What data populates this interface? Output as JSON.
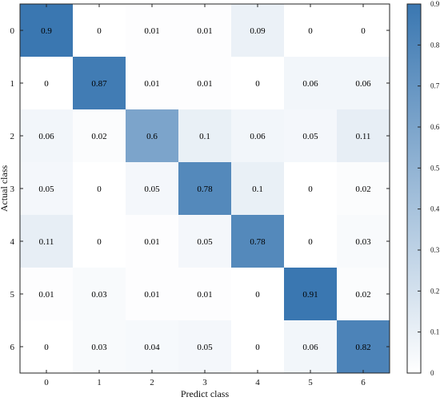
{
  "chart_data": {
    "type": "heatmap",
    "title": "",
    "xlabel": "Predict class",
    "ylabel": "Actual class",
    "x_categories": [
      "0",
      "1",
      "2",
      "3",
      "4",
      "5",
      "6"
    ],
    "y_categories": [
      "0",
      "1",
      "2",
      "3",
      "4",
      "5",
      "6"
    ],
    "values": [
      [
        0.9,
        0,
        0.01,
        0.01,
        0.09,
        0,
        0
      ],
      [
        0,
        0.87,
        0.01,
        0.01,
        0,
        0.06,
        0.06
      ],
      [
        0.06,
        0.02,
        0.6,
        0.1,
        0.06,
        0.05,
        0.11
      ],
      [
        0.05,
        0,
        0.05,
        0.78,
        0.1,
        0,
        0.02
      ],
      [
        0.11,
        0,
        0.01,
        0.05,
        0.78,
        0,
        0.03
      ],
      [
        0.01,
        0.03,
        0.01,
        0.01,
        0,
        0.91,
        0.02
      ],
      [
        0,
        0.03,
        0.04,
        0.05,
        0,
        0.06,
        0.82
      ]
    ],
    "colorbar": {
      "range": [
        0,
        0.9
      ],
      "ticks": [
        0,
        0.1,
        0.2,
        0.3,
        0.4,
        0.5,
        0.6,
        0.7,
        0.8,
        0.9
      ],
      "tick_labels": [
        "0",
        "0.1",
        "0.2",
        "0.3",
        "0.4",
        "0.5",
        "0.6",
        "0.7",
        "0.8",
        "0.9"
      ],
      "color_low": "#ffffff",
      "color_high": "#3a77b1"
    },
    "grid": false,
    "legend": "colorbar-right"
  }
}
